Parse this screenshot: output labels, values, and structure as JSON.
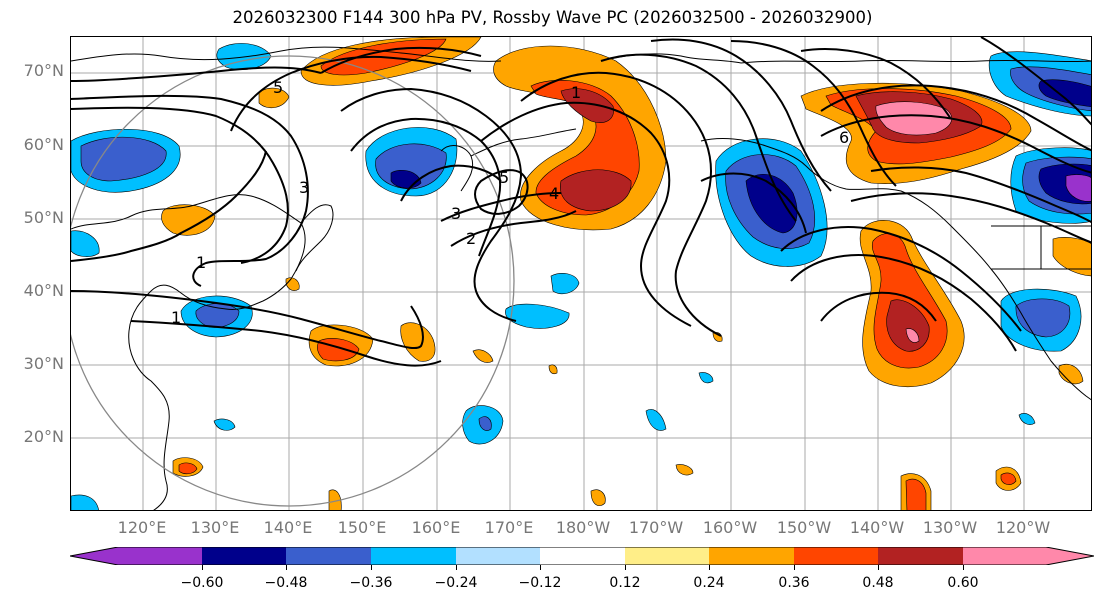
{
  "title": "2026032300 F144 300 hPa PV, Rossby Wave PC (2026032500 - 2026032900)",
  "lat_labels": [
    "70°N",
    "60°N",
    "50°N",
    "40°N",
    "30°N",
    "20°N"
  ],
  "lon_labels": [
    "120°E",
    "130°E",
    "140°E",
    "150°E",
    "160°E",
    "170°E",
    "180°W",
    "170°W",
    "160°W",
    "150°W",
    "140°W",
    "130°W",
    "120°W"
  ],
  "contour_labels": [
    "1",
    "1",
    "2",
    "3",
    "3",
    "4",
    "5",
    "5",
    "6",
    "1"
  ],
  "colorbar": {
    "ticks": [
      "−0.60",
      "−0.48",
      "−0.36",
      "−0.24",
      "−0.12",
      "0.12",
      "0.24",
      "0.36",
      "0.48",
      "0.60"
    ],
    "colors": [
      "#9932cc",
      "#00008b",
      "#3a5fcd",
      "#00bfff",
      "#b2e0ff",
      "#ffffff",
      "#ffee88",
      "#ffa500",
      "#ff4500",
      "#b22222",
      "#ff88aa",
      "#ff88aa"
    ]
  },
  "colors": {
    "neg_strong": "#00008b",
    "neg_mid": "#3a5fcd",
    "neg_light": "#00bfff",
    "neg_faint": "#b2e0ff",
    "pos_faint": "#ffee88",
    "pos_light": "#ffa500",
    "pos_mid": "#ff4500",
    "pos_strong": "#b22222",
    "pos_max": "#ff88aa"
  }
}
